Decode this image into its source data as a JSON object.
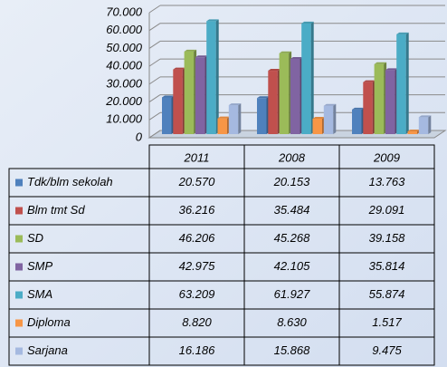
{
  "chart_data": {
    "type": "bar",
    "categories": [
      "2011",
      "2008",
      "2009"
    ],
    "series": [
      {
        "name": "Tdk/blm sekolah",
        "color": "#4f81bd",
        "values": [
          20570,
          20153,
          13763
        ],
        "value_labels": [
          "20.570",
          "20.153",
          "13.763"
        ]
      },
      {
        "name": "Blm tmt Sd",
        "color": "#c0504d",
        "values": [
          36216,
          35484,
          29091
        ],
        "value_labels": [
          "36.216",
          "35.484",
          "29.091"
        ]
      },
      {
        "name": "SD",
        "color": "#9bbb59",
        "values": [
          46206,
          45268,
          39158
        ],
        "value_labels": [
          "46.206",
          "45.268",
          "39.158"
        ]
      },
      {
        "name": "SMP",
        "color": "#8064a2",
        "values": [
          42975,
          42105,
          35814
        ],
        "value_labels": [
          "42.975",
          "42.105",
          "35.814"
        ]
      },
      {
        "name": "SMA",
        "color": "#4bacc6",
        "values": [
          63209,
          61927,
          55874
        ],
        "value_labels": [
          "63.209",
          "61.927",
          "55.874"
        ]
      },
      {
        "name": "Diploma",
        "color": "#f79646",
        "values": [
          8820,
          8630,
          1517
        ],
        "value_labels": [
          "8.820",
          "8.630",
          "1.517"
        ]
      },
      {
        "name": "Sarjana",
        "color": "#a5b9e0",
        "values": [
          16186,
          15868,
          9475
        ],
        "value_labels": [
          "16.186",
          "15.868",
          "9.475"
        ]
      }
    ],
    "ylim": [
      0,
      70000
    ],
    "yticks": [
      0,
      {
        "value": 10000,
        "label": "10.000"
      },
      {
        "value": 20000,
        "label": "20.000"
      },
      {
        "value": 30000,
        "label": "30.000"
      },
      {
        "value": 40000,
        "label": "40.000"
      },
      {
        "value": 50000,
        "label": "50.000"
      },
      {
        "value": 60000,
        "label": "60.000"
      },
      {
        "value": 70000,
        "label": "70.000"
      }
    ],
    "grid": true
  }
}
